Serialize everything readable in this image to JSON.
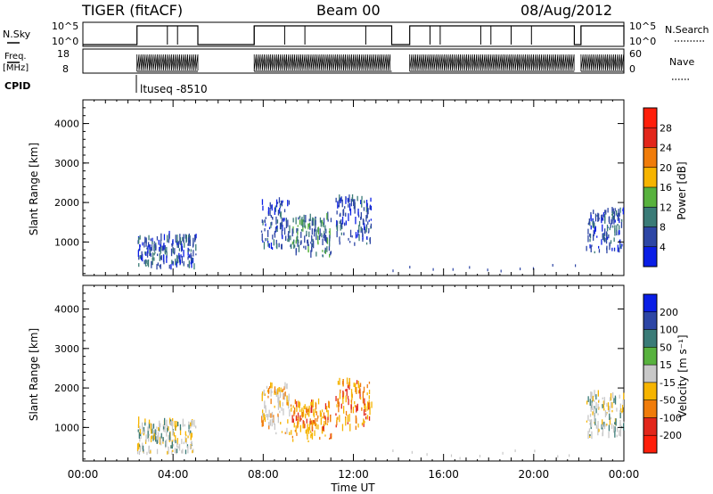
{
  "header": {
    "station": "TIGER (fitACF)",
    "beam": "Beam 00",
    "date": "08/Aug/2012"
  },
  "housekeeping": {
    "nsky": {
      "label": "N.Sky",
      "ticks": [
        "10^5",
        "10^0"
      ],
      "right_label": "N.Search",
      "right_ticks": [
        "10^5",
        "10^0"
      ]
    },
    "freq": {
      "label_line1": "Freq.",
      "label_line2": "[MHz]",
      "ticks": [
        "18",
        "8"
      ],
      "right_label": "Nave",
      "right_ticks": [
        "60",
        "0"
      ]
    },
    "cpid": {
      "label": "CPID",
      "annotation": "ltuseq -8510"
    },
    "operating_intervals_hours": [
      [
        2.4,
        5.1
      ],
      [
        7.6,
        13.7
      ],
      [
        14.5,
        21.8
      ],
      [
        22.1,
        24.0
      ]
    ]
  },
  "chart_data": [
    {
      "type": "heatmap",
      "panel": "power",
      "ylabel": "Slant Range [km]",
      "yticks": [
        "1000",
        "2000",
        "3000",
        "4000"
      ],
      "ylim": [
        150,
        4600
      ],
      "xlim": [
        0,
        24
      ],
      "colorbar": {
        "label": "Power [dB]",
        "tick_labels": [
          "4",
          "8",
          "12",
          "16",
          "20",
          "24",
          "28"
        ],
        "colors": [
          "#0a1ee6",
          "#2d46a5",
          "#3a7b77",
          "#58b23e",
          "#f6b400",
          "#f07c0a",
          "#e2261a",
          "#ff1e0a"
        ]
      },
      "clusters": [
        {
          "t": [
            2.4,
            5.0
          ],
          "r": [
            300,
            1100
          ],
          "level": "low"
        },
        {
          "t": [
            7.9,
            9.2
          ],
          "r": [
            800,
            2000
          ],
          "level": "low"
        },
        {
          "t": [
            9.2,
            11.0
          ],
          "r": [
            600,
            1600
          ],
          "level": "low-mid"
        },
        {
          "t": [
            11.2,
            12.8
          ],
          "r": [
            900,
            2100
          ],
          "level": "low"
        },
        {
          "t": [
            22.3,
            24.0
          ],
          "r": [
            700,
            1800
          ],
          "level": "low"
        }
      ]
    },
    {
      "type": "heatmap",
      "panel": "velocity",
      "ylabel": "Slant Range [km]",
      "yticks": [
        "1000",
        "2000",
        "3000",
        "4000"
      ],
      "ylim": [
        150,
        4600
      ],
      "xlim": [
        0,
        24
      ],
      "xticks": [
        "00:00",
        "04:00",
        "08:00",
        "12:00",
        "16:00",
        "20:00",
        "00:00"
      ],
      "xlabel": "Time UT",
      "colorbar": {
        "label": "Velocity [m s⁻¹]",
        "tick_labels": [
          "200",
          "100",
          "50",
          "15",
          "-15",
          "-50",
          "-100",
          "-200"
        ],
        "colors": [
          "#0a1ee6",
          "#2d46a5",
          "#3a7b77",
          "#58b23e",
          "#c8c8c8",
          "#f6b400",
          "#f07c0a",
          "#e2261a",
          "#ff1e0a"
        ]
      },
      "clusters": [
        {
          "t": [
            2.4,
            5.0
          ],
          "r": [
            300,
            1100
          ],
          "level": "near-zero"
        },
        {
          "t": [
            7.9,
            9.2
          ],
          "r": [
            800,
            2000
          ],
          "level": "slightly-negative"
        },
        {
          "t": [
            9.2,
            11.0
          ],
          "r": [
            600,
            1600
          ],
          "level": "negative"
        },
        {
          "t": [
            11.2,
            12.8
          ],
          "r": [
            900,
            2100
          ],
          "level": "negative"
        },
        {
          "t": [
            22.3,
            24.0
          ],
          "r": [
            700,
            1800
          ],
          "level": "near-zero"
        }
      ]
    }
  ]
}
